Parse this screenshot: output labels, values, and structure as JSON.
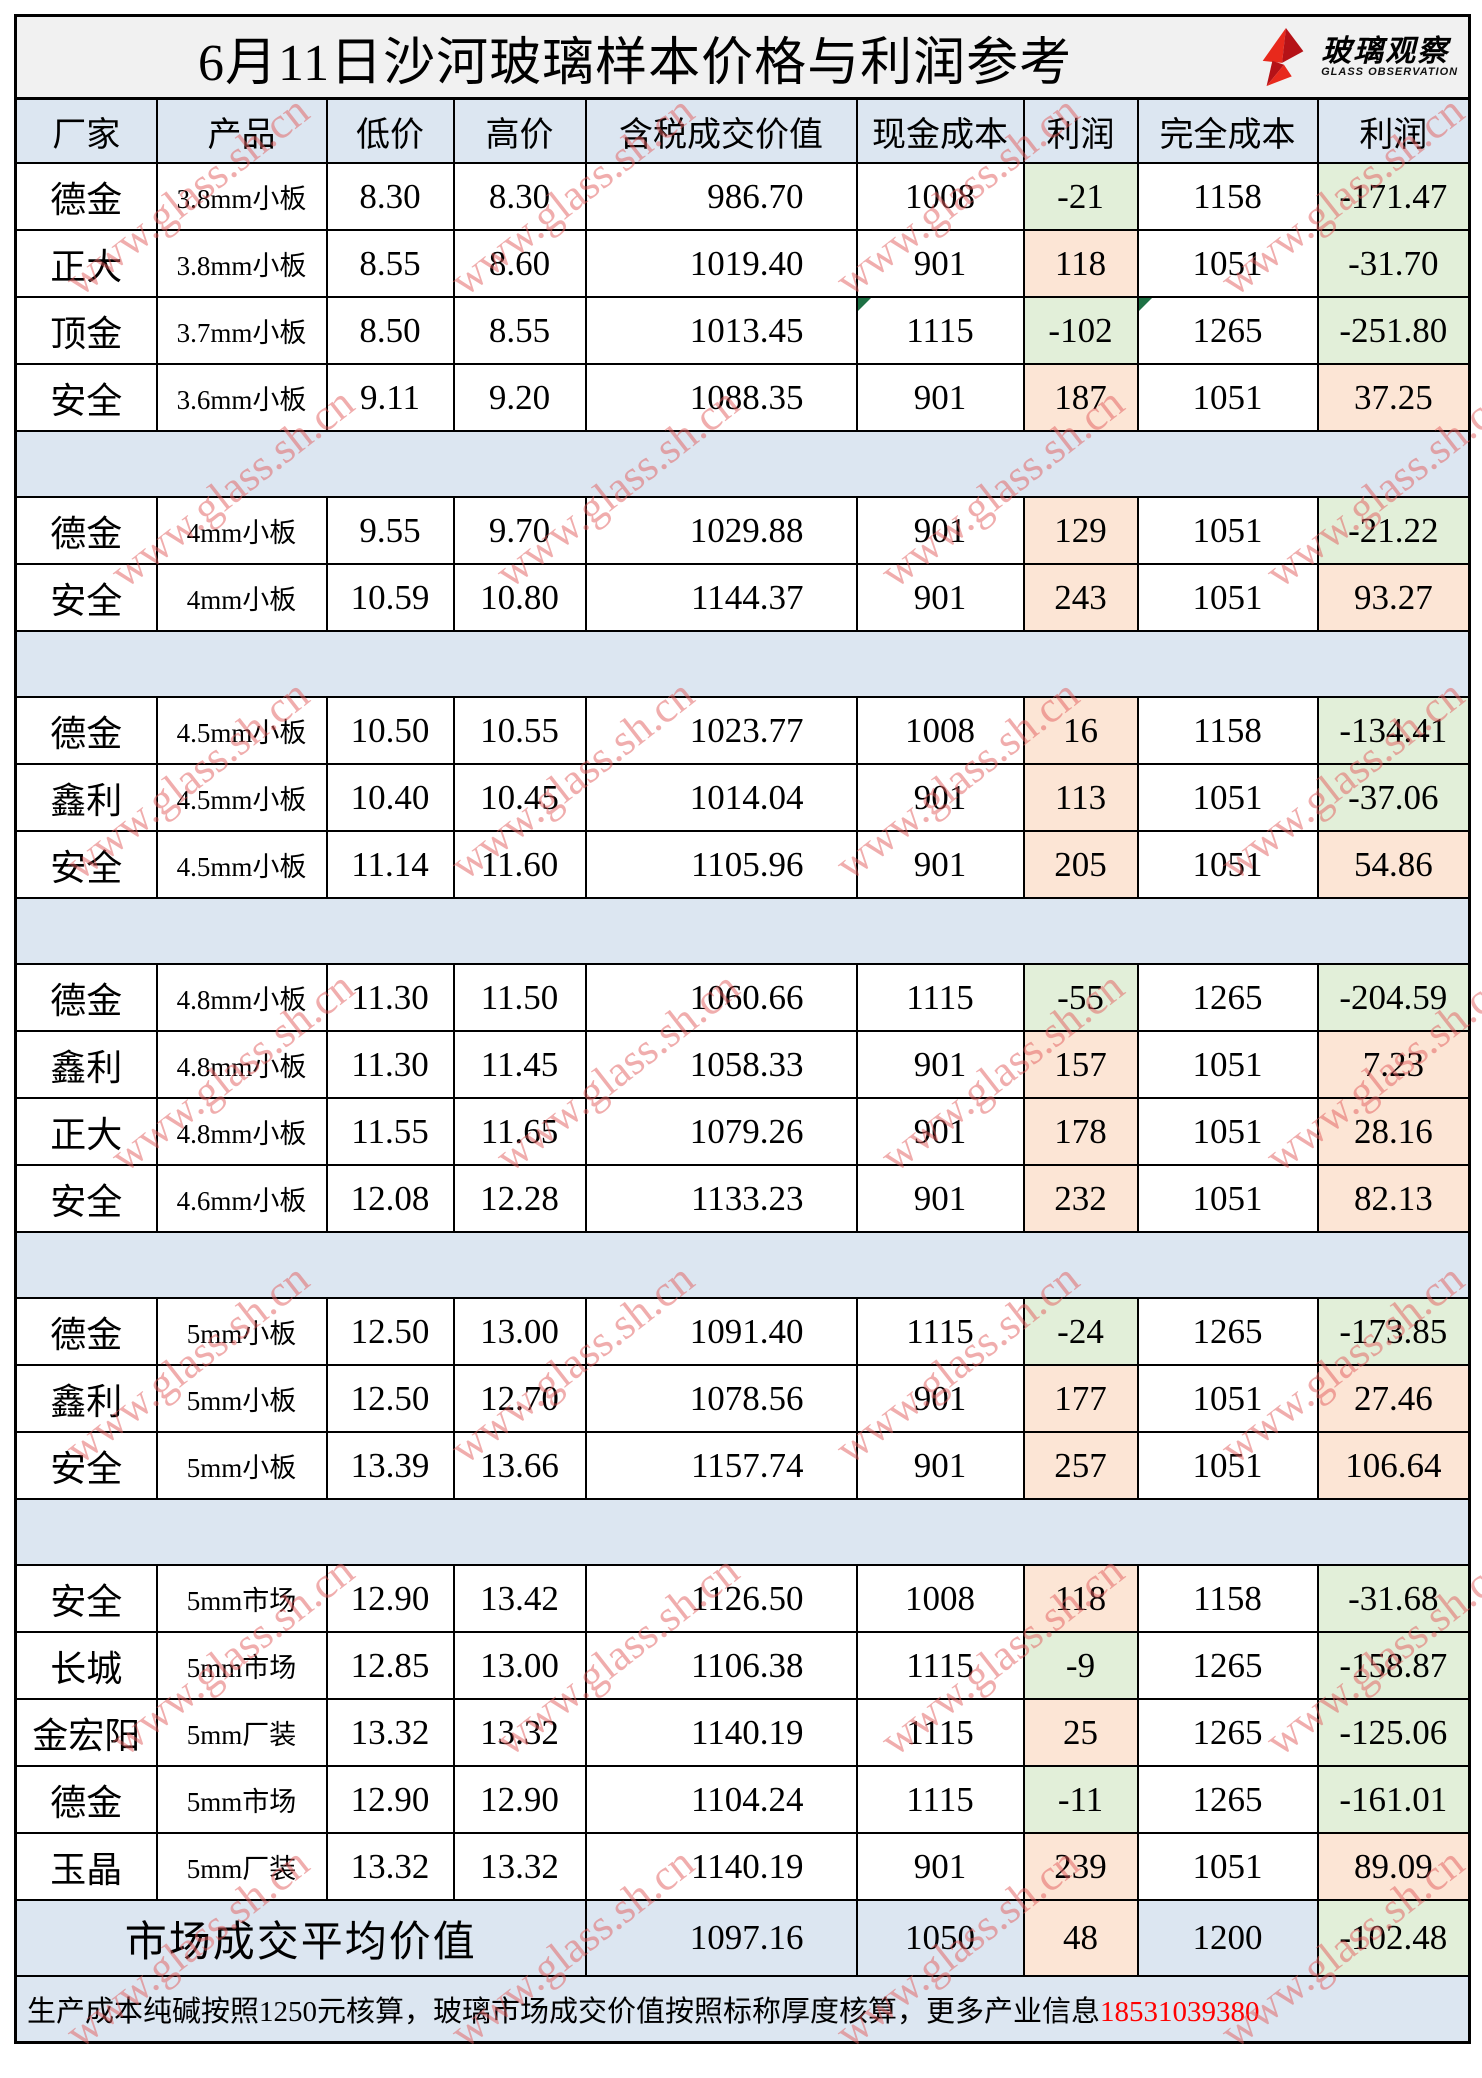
{
  "title": "6月11日沙河玻璃样本价格与利润参考",
  "logo": {
    "name": "玻璃观察",
    "subtitle": "GLASS OBSERVATION"
  },
  "watermark_text": "www.glass.sh.cn",
  "colors": {
    "header_bg": "#dce6f1",
    "separator_bg": "#dce6f1",
    "title_bg": "#f1f1f1",
    "profit_positive_bg": "#fce5d5",
    "profit_negative_bg": "#e2efd9",
    "phone_red": "#ff0000",
    "logo_red": "#e8291c",
    "watermark_pink": "#e25c5c"
  },
  "columns": [
    "厂家",
    "产品",
    "低价",
    "高价",
    "含税成交价值",
    "现金成本",
    "利润",
    "完全成本",
    "利润"
  ],
  "sections": [
    {
      "rows": [
        {
          "factory": "德金",
          "product": "3.8mm小板",
          "low": "8.30",
          "high": "8.30",
          "value": "986.70",
          "cash_cost": "1008",
          "profit": "-21",
          "full_cost": "1158",
          "full_profit": "-171.47"
        },
        {
          "factory": "正大",
          "product": "3.8mm小板",
          "low": "8.55",
          "high": "8.60",
          "value": "1019.40",
          "cash_cost": "901",
          "profit": "118",
          "full_cost": "1051",
          "full_profit": "-31.70"
        },
        {
          "factory": "顶金",
          "product": "3.7mm小板",
          "low": "8.50",
          "high": "8.55",
          "value": "1013.45",
          "cash_cost": "1115",
          "profit": "-102",
          "full_cost": "1265",
          "full_profit": "-251.80",
          "markers": [
            "cash_cost",
            "full_cost"
          ]
        },
        {
          "factory": "安全",
          "product": "3.6mm小板",
          "low": "9.11",
          "high": "9.20",
          "value": "1088.35",
          "cash_cost": "901",
          "profit": "187",
          "full_cost": "1051",
          "full_profit": "37.25"
        }
      ]
    },
    {
      "rows": [
        {
          "factory": "德金",
          "product": "4mm小板",
          "low": "9.55",
          "high": "9.70",
          "value": "1029.88",
          "cash_cost": "901",
          "profit": "129",
          "full_cost": "1051",
          "full_profit": "-21.22"
        },
        {
          "factory": "安全",
          "product": "4mm小板",
          "low": "10.59",
          "high": "10.80",
          "value": "1144.37",
          "cash_cost": "901",
          "profit": "243",
          "full_cost": "1051",
          "full_profit": "93.27"
        }
      ]
    },
    {
      "rows": [
        {
          "factory": "德金",
          "product": "4.5mm小板",
          "low": "10.50",
          "high": "10.55",
          "value": "1023.77",
          "cash_cost": "1008",
          "profit": "16",
          "full_cost": "1158",
          "full_profit": "-134.41"
        },
        {
          "factory": "鑫利",
          "product": "4.5mm小板",
          "low": "10.40",
          "high": "10.45",
          "value": "1014.04",
          "cash_cost": "901",
          "profit": "113",
          "full_cost": "1051",
          "full_profit": "-37.06"
        },
        {
          "factory": "安全",
          "product": "4.5mm小板",
          "low": "11.14",
          "high": "11.60",
          "value": "1105.96",
          "cash_cost": "901",
          "profit": "205",
          "full_cost": "1051",
          "full_profit": "54.86"
        }
      ]
    },
    {
      "rows": [
        {
          "factory": "德金",
          "product": "4.8mm小板",
          "low": "11.30",
          "high": "11.50",
          "value": "1060.66",
          "cash_cost": "1115",
          "profit": "-55",
          "full_cost": "1265",
          "full_profit": "-204.59"
        },
        {
          "factory": "鑫利",
          "product": "4.8mm小板",
          "low": "11.30",
          "high": "11.45",
          "value": "1058.33",
          "cash_cost": "901",
          "profit": "157",
          "full_cost": "1051",
          "full_profit": "7.23"
        },
        {
          "factory": "正大",
          "product": "4.8mm小板",
          "low": "11.55",
          "high": "11.65",
          "value": "1079.26",
          "cash_cost": "901",
          "profit": "178",
          "full_cost": "1051",
          "full_profit": "28.16"
        },
        {
          "factory": "安全",
          "product": "4.6mm小板",
          "low": "12.08",
          "high": "12.28",
          "value": "1133.23",
          "cash_cost": "901",
          "profit": "232",
          "full_cost": "1051",
          "full_profit": "82.13"
        }
      ]
    },
    {
      "rows": [
        {
          "factory": "德金",
          "product": "5mm小板",
          "low": "12.50",
          "high": "13.00",
          "value": "1091.40",
          "cash_cost": "1115",
          "profit": "-24",
          "full_cost": "1265",
          "full_profit": "-173.85"
        },
        {
          "factory": "鑫利",
          "product": "5mm小板",
          "low": "12.50",
          "high": "12.70",
          "value": "1078.56",
          "cash_cost": "901",
          "profit": "177",
          "full_cost": "1051",
          "full_profit": "27.46"
        },
        {
          "factory": "安全",
          "product": "5mm小板",
          "low": "13.39",
          "high": "13.66",
          "value": "1157.74",
          "cash_cost": "901",
          "profit": "257",
          "full_cost": "1051",
          "full_profit": "106.64"
        }
      ]
    },
    {
      "rows": [
        {
          "factory": "安全",
          "product": "5mm市场",
          "low": "12.90",
          "high": "13.42",
          "value": "1126.50",
          "cash_cost": "1008",
          "profit": "118",
          "full_cost": "1158",
          "full_profit": "-31.68"
        },
        {
          "factory": "长城",
          "product": "5mm市场",
          "low": "12.85",
          "high": "13.00",
          "value": "1106.38",
          "cash_cost": "1115",
          "profit": "-9",
          "full_cost": "1265",
          "full_profit": "-158.87"
        },
        {
          "factory": "金宏阳",
          "product": "5mm厂装",
          "low": "13.32",
          "high": "13.32",
          "value": "1140.19",
          "cash_cost": "1115",
          "profit": "25",
          "full_cost": "1265",
          "full_profit": "-125.06"
        },
        {
          "factory": "德金",
          "product": "5mm市场",
          "low": "12.90",
          "high": "12.90",
          "value": "1104.24",
          "cash_cost": "1115",
          "profit": "-11",
          "full_cost": "1265",
          "full_profit": "-161.01"
        },
        {
          "factory": "玉晶",
          "product": "5mm厂装",
          "low": "13.32",
          "high": "13.32",
          "value": "1140.19",
          "cash_cost": "901",
          "profit": "239",
          "full_cost": "1051",
          "full_profit": "89.09"
        }
      ]
    }
  ],
  "average_row": {
    "label": "市场成交平均价值",
    "value": "1097.16",
    "cash_cost": "1050",
    "profit": "48",
    "full_cost": "1200",
    "full_profit": "-102.48"
  },
  "footer": {
    "note": "生产成本纯碱按照1250元核算，玻璃市场成交价值按照标称厚度核算，更多产业信息",
    "phone": "18531039380"
  }
}
